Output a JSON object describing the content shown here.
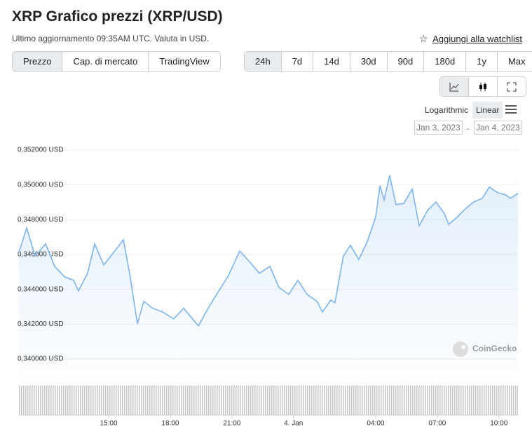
{
  "header": {
    "title": "XRP Grafico prezzi (XRP/USD)",
    "subtitle": "Ultimo aggiornamento 09:35AM UTC. Valuta in USD.",
    "watchlist": "Aggiungi alla watchlist"
  },
  "tabs": {
    "view": [
      "Prezzo",
      "Cap. di mercato",
      "TradingView"
    ],
    "range": [
      "24h",
      "7d",
      "14d",
      "30d",
      "90d",
      "180d",
      "1y",
      "Max"
    ]
  },
  "scale": {
    "log": "Logarithmic",
    "linear": "Linear"
  },
  "dates": {
    "from": "Jan 3, 2023",
    "arrow": "→",
    "to": "Jan 4, 2023"
  },
  "chart_data": {
    "type": "line",
    "watermark": "CoinGecko",
    "grid": true,
    "xlim": [
      10.63,
      34.93
    ],
    "xticks": [
      {
        "value": 15,
        "label": "15:00"
      },
      {
        "value": 18,
        "label": "18:00"
      },
      {
        "value": 21,
        "label": "21:00"
      },
      {
        "value": 24,
        "label": "4. Jan"
      },
      {
        "value": 28,
        "label": "04:00"
      },
      {
        "value": 31,
        "label": "07:00"
      },
      {
        "value": 34,
        "label": "10:00"
      }
    ],
    "ylim": [
      0.34,
      0.352
    ],
    "yticks": [
      {
        "value": 0.34,
        "label": "0,340000 USD"
      },
      {
        "value": 0.342,
        "label": "0,342000 USD"
      },
      {
        "value": 0.344,
        "label": "0,344000 USD"
      },
      {
        "value": 0.346,
        "label": "0,346000 USD"
      },
      {
        "value": 0.348,
        "label": "0,348000 USD"
      },
      {
        "value": 0.35,
        "label": "0,350000 USD"
      },
      {
        "value": 0.352,
        "label": "0,352000 USD"
      }
    ],
    "series": [
      {
        "color": "#7cb5ec",
        "x": [
          10.63,
          11.01,
          11.41,
          11.93,
          12.37,
          12.85,
          13.29,
          13.53,
          13.97,
          14.32,
          14.76,
          15.24,
          15.72,
          16.02,
          16.4,
          16.71,
          17.15,
          17.63,
          18.17,
          18.65,
          19.37,
          19.84,
          20.36,
          20.8,
          21.38,
          21.82,
          22.34,
          22.85,
          23.29,
          23.77,
          24.21,
          24.66,
          25.14,
          25.41,
          25.82,
          26.02,
          26.43,
          26.77,
          27.18,
          27.59,
          28.0,
          28.21,
          28.41,
          28.68,
          28.99,
          29.37,
          29.78,
          30.12,
          30.53,
          30.94,
          31.35,
          31.55,
          31.96,
          32.37,
          32.78,
          33.19,
          33.53,
          33.94,
          34.35,
          34.56,
          34.93
        ],
        "values": [
          0.34612,
          0.34753,
          0.34592,
          0.34661,
          0.34532,
          0.34472,
          0.34452,
          0.34391,
          0.34492,
          0.34661,
          0.3454,
          0.34612,
          0.34685,
          0.34492,
          0.34202,
          0.34331,
          0.34291,
          0.3427,
          0.3423,
          0.34291,
          0.3419,
          0.34291,
          0.34391,
          0.34472,
          0.3462,
          0.34564,
          0.34492,
          0.34532,
          0.34411,
          0.34371,
          0.34452,
          0.34371,
          0.34331,
          0.3427,
          0.34339,
          0.34323,
          0.34592,
          0.34653,
          0.34572,
          0.34673,
          0.34814,
          0.34995,
          0.34914,
          0.35055,
          0.34886,
          0.34894,
          0.34975,
          0.34765,
          0.34854,
          0.34902,
          0.34834,
          0.34773,
          0.34814,
          0.34862,
          0.34902,
          0.34922,
          0.34987,
          0.34955,
          0.34942,
          0.34922,
          0.34951
        ]
      }
    ]
  }
}
